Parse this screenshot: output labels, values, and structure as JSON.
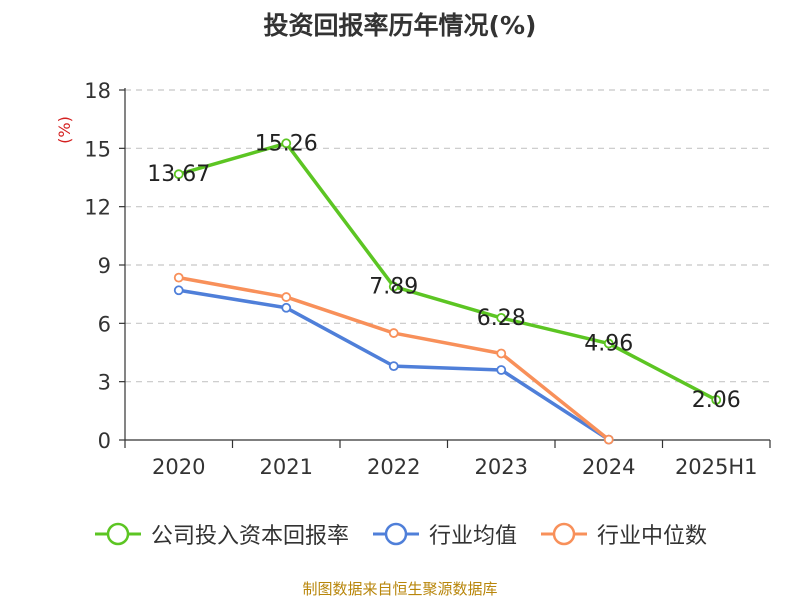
{
  "chart_data": {
    "type": "line",
    "title": "投资回报率历年情况(%)",
    "ylabel": "(%)",
    "categories": [
      "2020",
      "2021",
      "2022",
      "2023",
      "2024",
      "2025H1"
    ],
    "ylim": [
      0,
      18
    ],
    "yticks": [
      0,
      3,
      6,
      9,
      12,
      15,
      18
    ],
    "grid": "dashed-horizontal",
    "legend_position": "bottom",
    "series": [
      {
        "name": "公司投入资本回报率",
        "color": "#5cc523",
        "values": [
          13.67,
          15.26,
          7.89,
          6.28,
          4.96,
          2.06
        ],
        "labels": [
          "13.67",
          "15.26",
          "7.89",
          "6.28",
          "4.96",
          "2.06"
        ]
      },
      {
        "name": "行业均值",
        "color": "#4f7fd9",
        "values": [
          7.7,
          6.8,
          3.8,
          3.6,
          0.02,
          null
        ]
      },
      {
        "name": "行业中位数",
        "color": "#f8905a",
        "values": [
          8.35,
          7.35,
          5.5,
          4.45,
          0.02,
          null
        ]
      }
    ]
  },
  "source": "制图数据来自恒生聚源数据库"
}
